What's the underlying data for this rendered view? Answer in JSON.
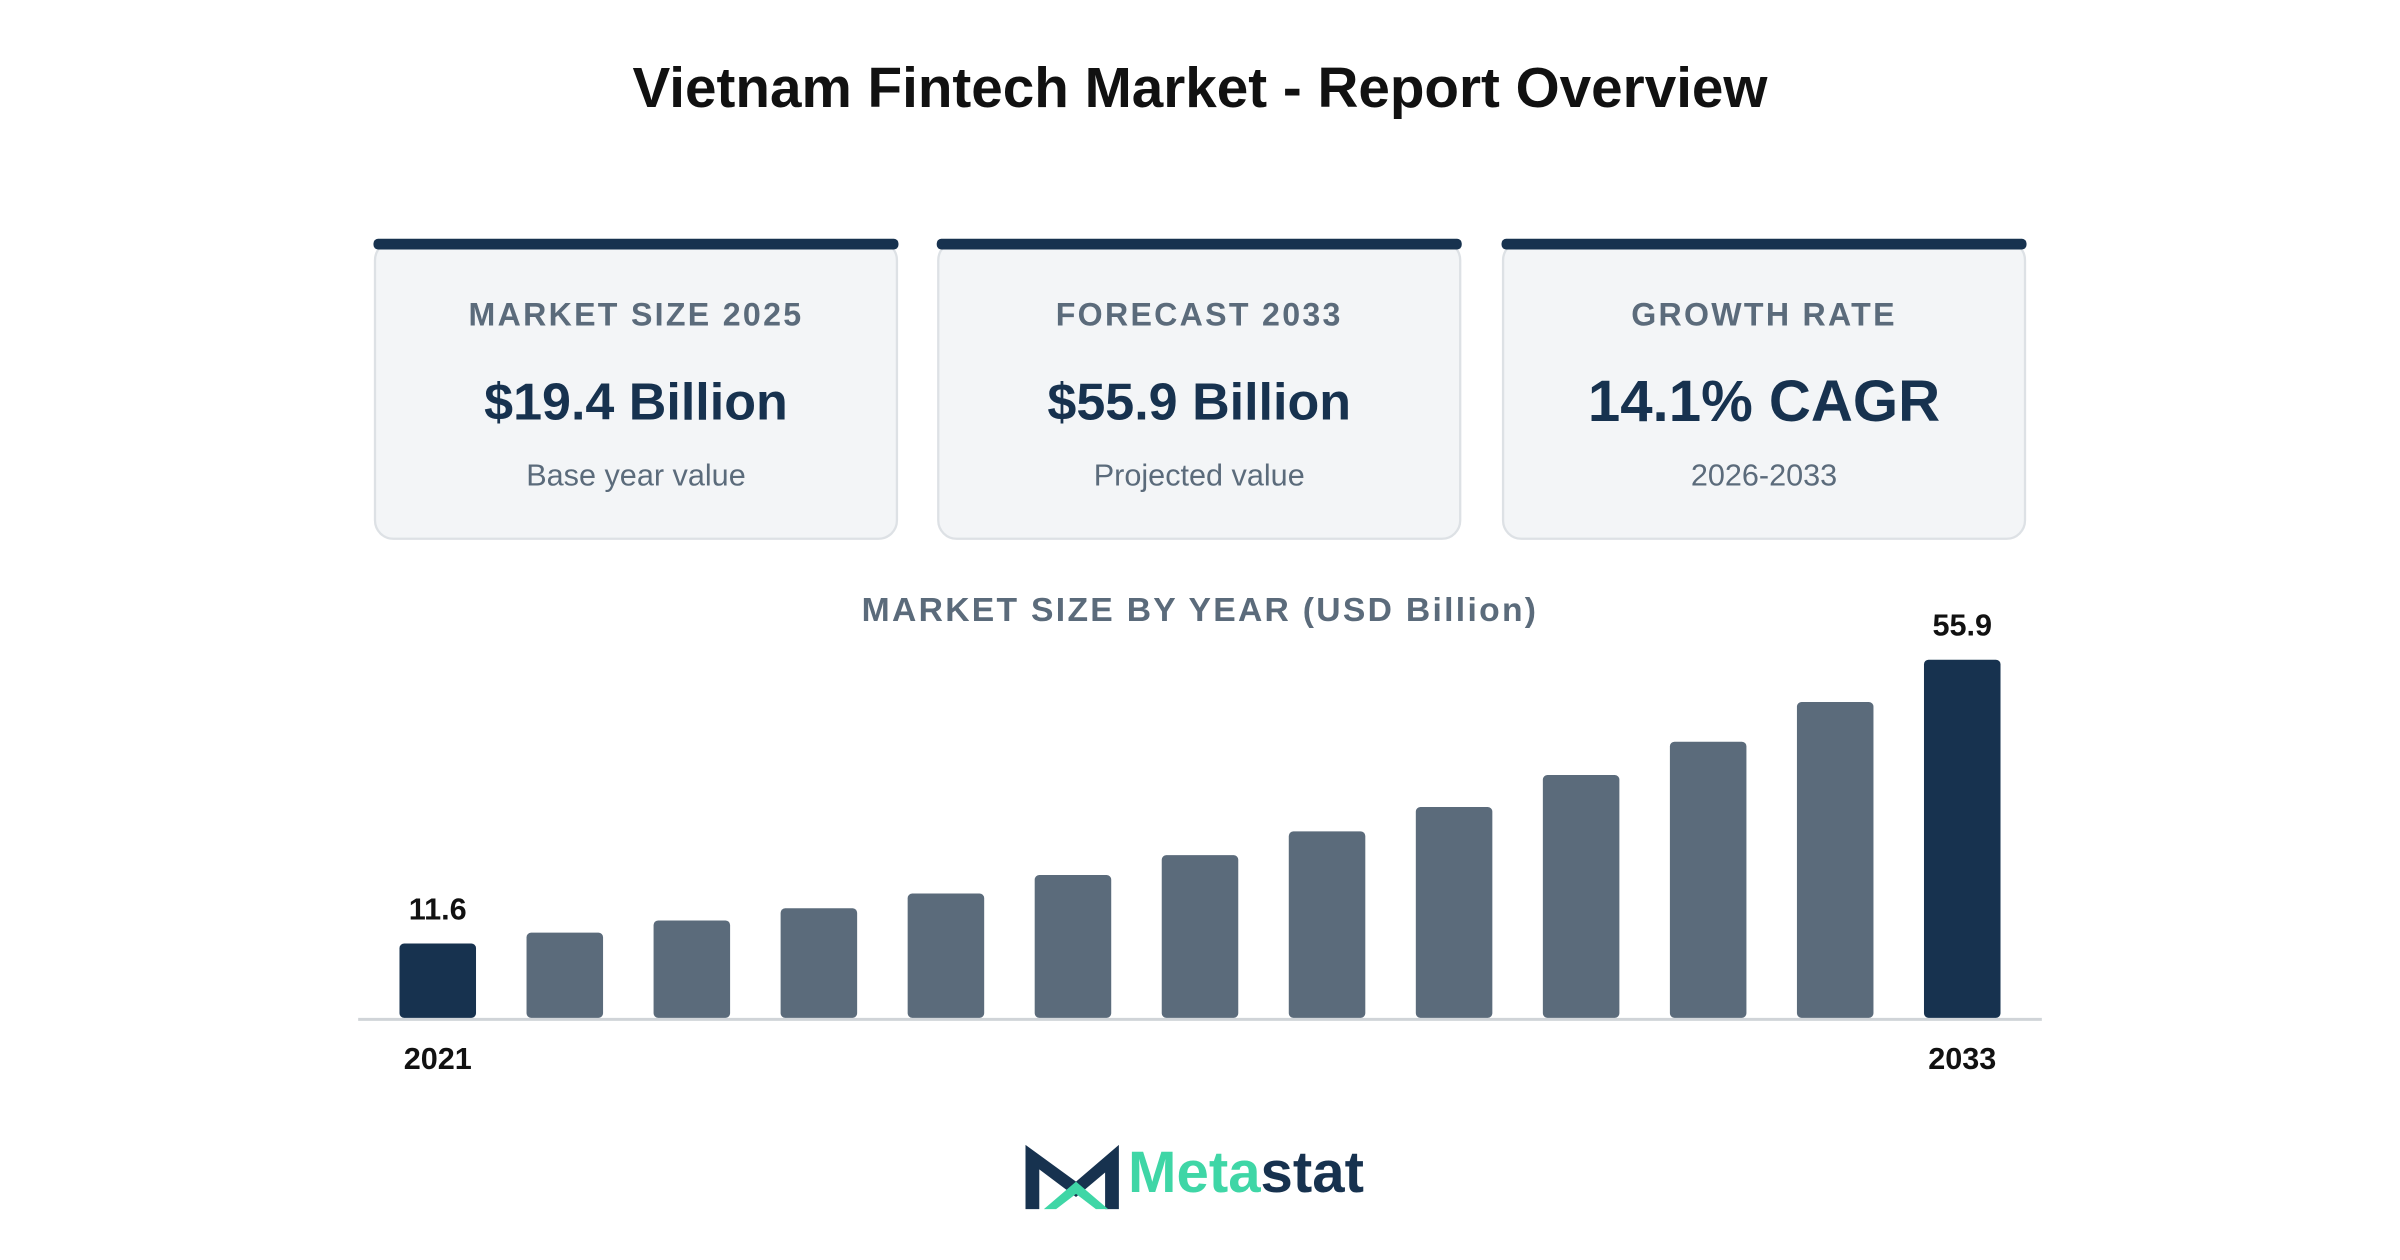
{
  "title": "Vietnam Fintech Market - Report Overview",
  "cards": [
    {
      "label": "MARKET SIZE 2025",
      "value": "$19.4 Billion",
      "note": "Base year value"
    },
    {
      "label": "FORECAST 2033",
      "value": "$55.9 Billion",
      "note": "Projected value"
    },
    {
      "label": "GROWTH RATE",
      "value": "14.1% CAGR",
      "note": "2026-2033"
    }
  ],
  "chart_data": {
    "type": "bar",
    "title": "MARKET SIZE BY YEAR (USD Billion)",
    "categories": [
      "2021",
      null,
      null,
      null,
      null,
      null,
      null,
      null,
      null,
      null,
      null,
      null,
      "2033"
    ],
    "values": [
      11.6,
      13.3,
      15.2,
      17.1,
      19.4,
      22.3,
      25.4,
      29.1,
      32.9,
      37.9,
      43.1,
      49.3,
      55.9
    ],
    "color": "#5b6b7b",
    "highlight_color": "#17324f"
  },
  "logo": [
    "Meta",
    "stat"
  ]
}
